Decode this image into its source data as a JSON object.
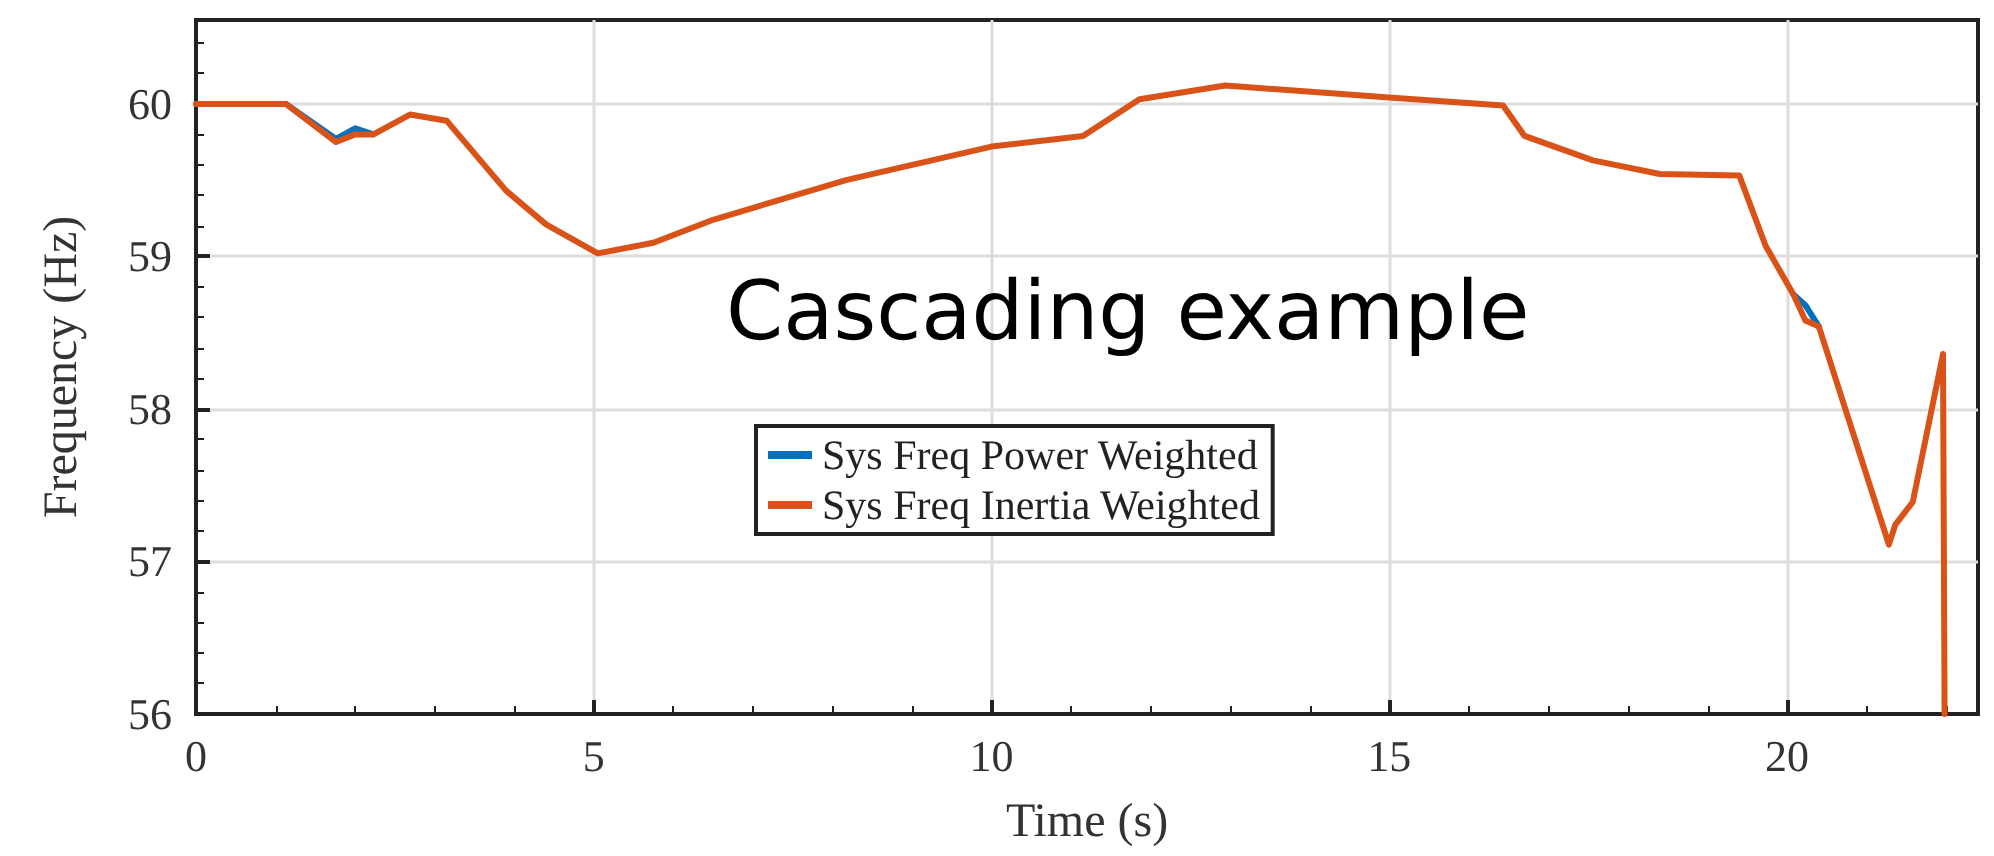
{
  "chart_data": {
    "type": "line",
    "xlabel": "Time (s)",
    "ylabel": "Frequency (Hz)",
    "annotations": [
      "Cascading example"
    ],
    "xlim": [
      0,
      22.4
    ],
    "xticks": [
      0,
      5,
      10,
      15,
      20
    ],
    "ylim": [
      56,
      60.55
    ],
    "yticks": [
      56,
      57,
      58,
      59,
      60
    ],
    "grid": true,
    "legend": "center",
    "marker": "none",
    "line_style": "solid",
    "x": [
      0,
      1.13,
      1.76,
      2.0,
      2.23,
      2.69,
      3.15,
      3.9,
      4.4,
      5.05,
      5.75,
      6.5,
      8.17,
      10.0,
      11.15,
      11.86,
      12.94,
      15.04,
      16.43,
      16.7,
      17.56,
      18.4,
      19.4,
      19.73,
      20.08,
      20.23,
      20.4,
      21.28,
      21.36,
      21.58,
      21.96,
      21.98
    ],
    "series": [
      {
        "name": "Sys Freq Power Weighted",
        "color": "#0072bd",
        "values": [
          null,
          60,
          59.77,
          59.84,
          59.8,
          null,
          null,
          null,
          null,
          null,
          null,
          null,
          null,
          null,
          null,
          null,
          null,
          null,
          null,
          null,
          null,
          null,
          null,
          null,
          58.75,
          58.68,
          58.54,
          null,
          null,
          null,
          null,
          null
        ]
      },
      {
        "name": "Sys Freq Inertia Weighted",
        "color": "#d95319",
        "values": [
          60,
          60,
          59.75,
          59.8,
          59.8,
          59.93,
          59.89,
          59.43,
          59.21,
          59.02,
          59.09,
          59.24,
          59.5,
          59.72,
          59.79,
          60.03,
          60.12,
          60.04,
          59.99,
          59.79,
          59.63,
          59.54,
          59.53,
          59.07,
          58.75,
          58.58,
          58.54,
          57.11,
          57.24,
          57.39,
          58.36,
          56
        ]
      }
    ]
  }
}
